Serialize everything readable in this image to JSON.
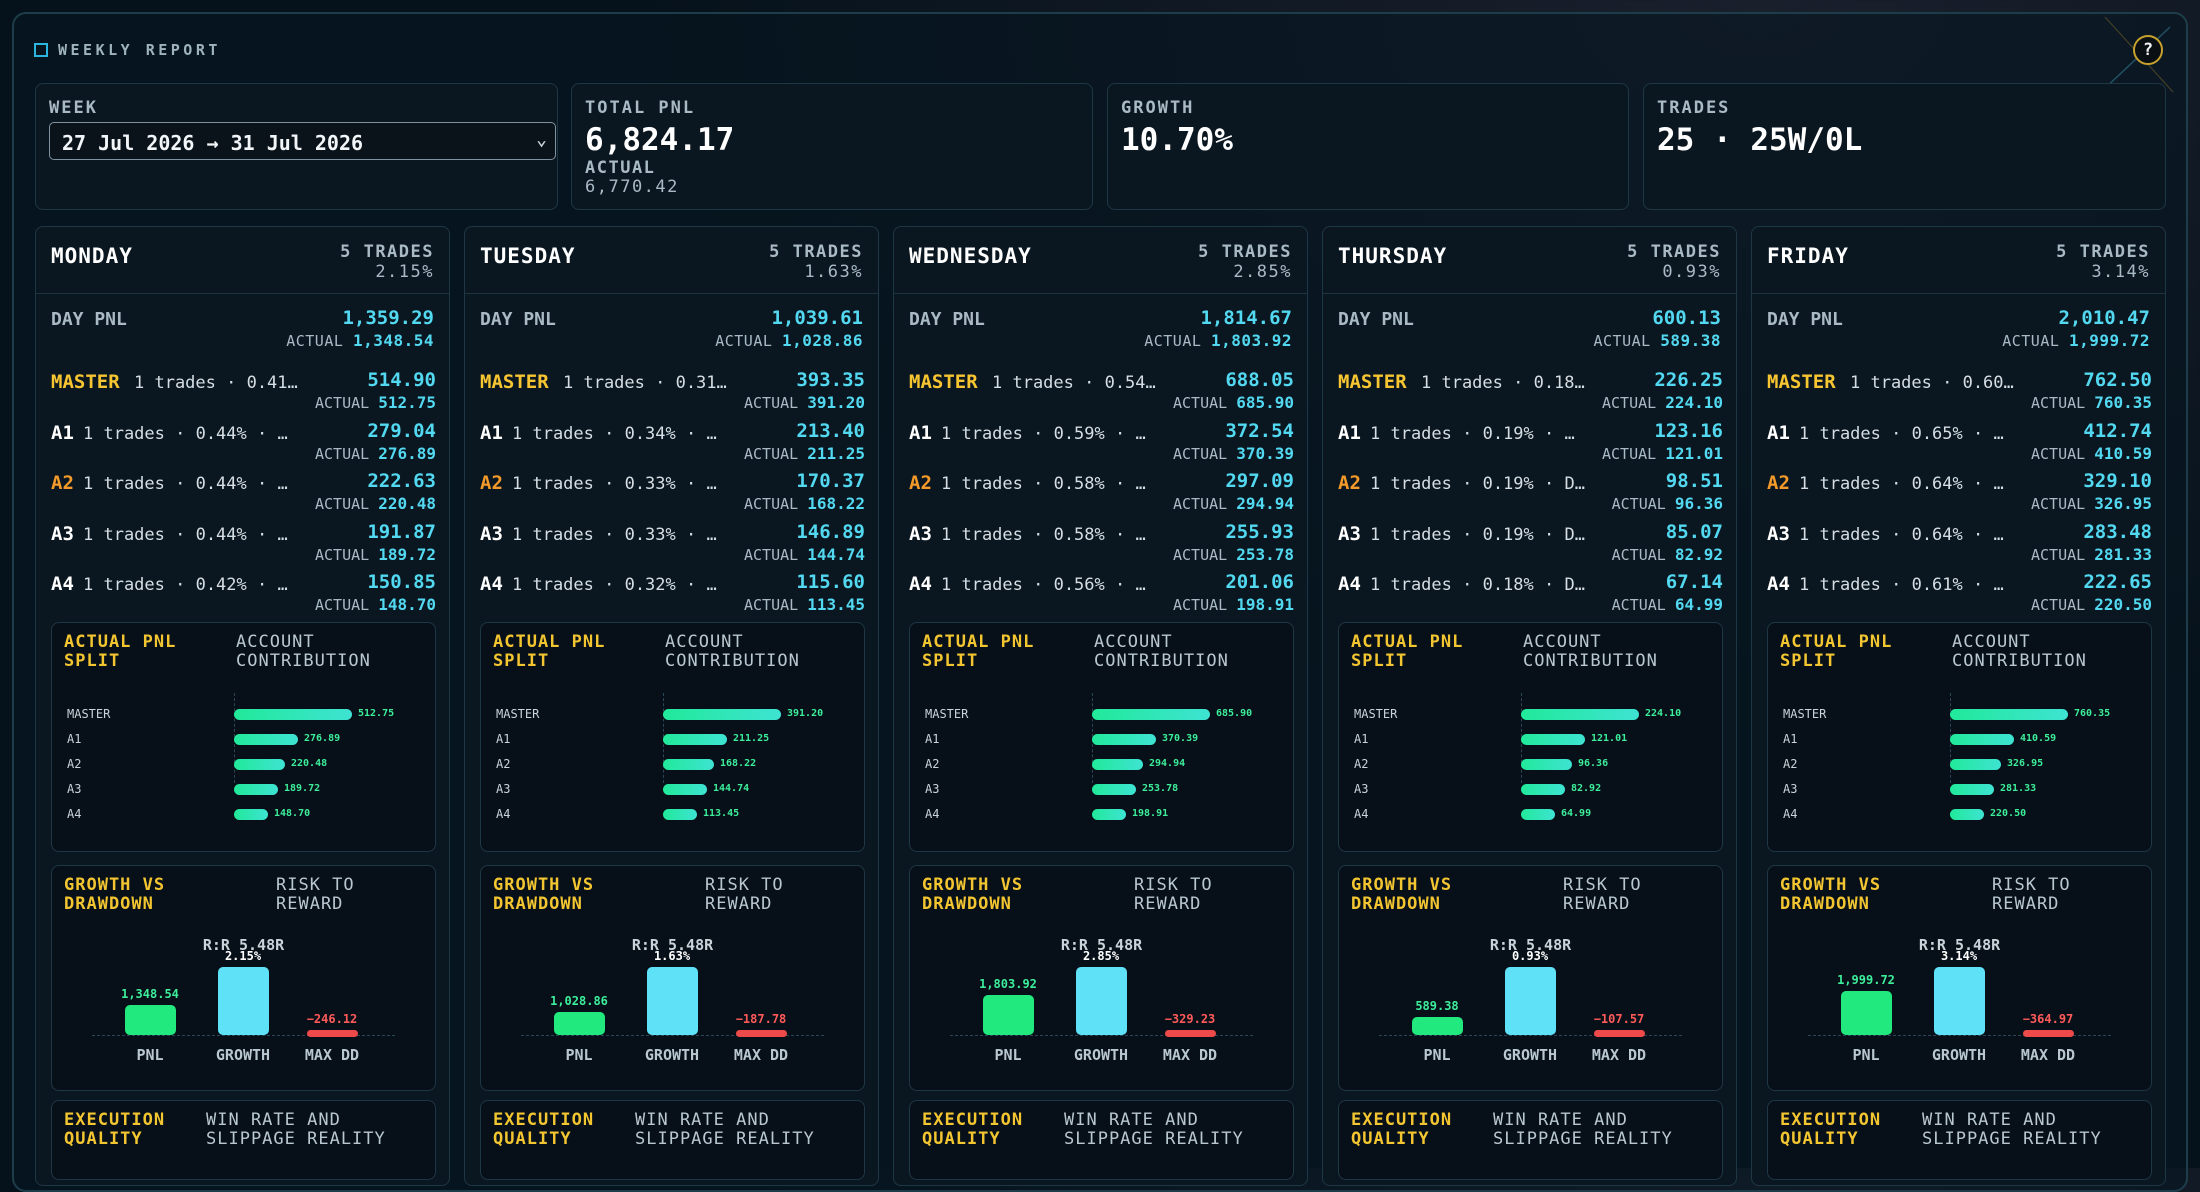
{
  "header": {
    "title": "WEEKLY REPORT",
    "help_label": "?"
  },
  "summary": {
    "week": {
      "label": "WEEK",
      "selected": "27 Jul 2026 → 31 Jul 2026"
    },
    "total_pnl": {
      "label": "TOTAL PNL",
      "value": "6,824.17",
      "actual_label": "ACTUAL",
      "actual_value": "6,770.42"
    },
    "growth": {
      "label": "GROWTH",
      "value": "10.70%"
    },
    "trades": {
      "label": "TRADES",
      "value": "25 · 25W/0L"
    }
  },
  "labels": {
    "day_pnl": "DAY PNL",
    "actual": "ACTUAL",
    "split_title": "ACTUAL PNL\nSPLIT",
    "split_sub": "ACCOUNT\nCONTRIBUTION",
    "gv_title": "GROWTH VS\nDRAWDOWN",
    "gv_sub": "RISK TO\nREWARD",
    "gv_pnl": "PNL",
    "gv_growth": "GROWTH",
    "gv_dd": "MAX DD",
    "exec_title": "EXECUTION\nQUALITY",
    "exec_sub": "WIN RATE AND\nSLIPPAGE REALITY"
  },
  "colors": {
    "master": "#f7c531",
    "a2": "#f39a2a",
    "default_acct": "#ffffff",
    "pnl_bar": "#21e97e",
    "growth_bar": "#5fe2f7",
    "dd_bar": "#ef4a4a"
  },
  "days": [
    {
      "name": "MONDAY",
      "trades": "5 TRADES",
      "pct": "2.15%",
      "day_pnl": "1,359.29",
      "day_actual": "1,348.54",
      "accounts": [
        {
          "name": "MASTER",
          "desc": "1 trades · 0.41…",
          "pnl": "514.90",
          "actual": "512.75"
        },
        {
          "name": "A1",
          "desc": "1 trades · 0.44% · …",
          "pnl": "279.04",
          "actual": "276.89"
        },
        {
          "name": "A2",
          "desc": "1 trades · 0.44% · …",
          "pnl": "222.63",
          "actual": "220.48"
        },
        {
          "name": "A3",
          "desc": "1 trades · 0.44% · …",
          "pnl": "191.87",
          "actual": "189.72"
        },
        {
          "name": "A4",
          "desc": "1 trades · 0.42% · …",
          "pnl": "150.85",
          "actual": "148.70"
        }
      ],
      "split": [
        {
          "name": "MASTER",
          "value": 512.75,
          "label": "512.75"
        },
        {
          "name": "A1",
          "value": 276.89,
          "label": "276.89"
        },
        {
          "name": "A2",
          "value": 220.48,
          "label": "220.48"
        },
        {
          "name": "A3",
          "value": 189.72,
          "label": "189.72"
        },
        {
          "name": "A4",
          "value": 148.7,
          "label": "148.70"
        }
      ],
      "rr": "R:R 5.48R",
      "gv": {
        "pnl": 1348.54,
        "pnl_label": "1,348.54",
        "growth": 2.15,
        "growth_label": "2.15%",
        "dd": -246.12,
        "dd_label": "−246.12"
      }
    },
    {
      "name": "TUESDAY",
      "trades": "5 TRADES",
      "pct": "1.63%",
      "day_pnl": "1,039.61",
      "day_actual": "1,028.86",
      "accounts": [
        {
          "name": "MASTER",
          "desc": "1 trades · 0.31…",
          "pnl": "393.35",
          "actual": "391.20"
        },
        {
          "name": "A1",
          "desc": "1 trades · 0.34% · …",
          "pnl": "213.40",
          "actual": "211.25"
        },
        {
          "name": "A2",
          "desc": "1 trades · 0.33% · …",
          "pnl": "170.37",
          "actual": "168.22"
        },
        {
          "name": "A3",
          "desc": "1 trades · 0.33% · …",
          "pnl": "146.89",
          "actual": "144.74"
        },
        {
          "name": "A4",
          "desc": "1 trades · 0.32% · …",
          "pnl": "115.60",
          "actual": "113.45"
        }
      ],
      "split": [
        {
          "name": "MASTER",
          "value": 391.2,
          "label": "391.20"
        },
        {
          "name": "A1",
          "value": 211.25,
          "label": "211.25"
        },
        {
          "name": "A2",
          "value": 168.22,
          "label": "168.22"
        },
        {
          "name": "A3",
          "value": 144.74,
          "label": "144.74"
        },
        {
          "name": "A4",
          "value": 113.45,
          "label": "113.45"
        }
      ],
      "rr": "R:R 5.48R",
      "gv": {
        "pnl": 1028.86,
        "pnl_label": "1,028.86",
        "growth": 1.63,
        "growth_label": "1.63%",
        "dd": -187.78,
        "dd_label": "−187.78"
      }
    },
    {
      "name": "WEDNESDAY",
      "trades": "5 TRADES",
      "pct": "2.85%",
      "day_pnl": "1,814.67",
      "day_actual": "1,803.92",
      "accounts": [
        {
          "name": "MASTER",
          "desc": "1 trades · 0.54…",
          "pnl": "688.05",
          "actual": "685.90"
        },
        {
          "name": "A1",
          "desc": "1 trades · 0.59% · …",
          "pnl": "372.54",
          "actual": "370.39"
        },
        {
          "name": "A2",
          "desc": "1 trades · 0.58% · …",
          "pnl": "297.09",
          "actual": "294.94"
        },
        {
          "name": "A3",
          "desc": "1 trades · 0.58% · …",
          "pnl": "255.93",
          "actual": "253.78"
        },
        {
          "name": "A4",
          "desc": "1 trades · 0.56% · …",
          "pnl": "201.06",
          "actual": "198.91"
        }
      ],
      "split": [
        {
          "name": "MASTER",
          "value": 685.9,
          "label": "685.90"
        },
        {
          "name": "A1",
          "value": 370.39,
          "label": "370.39"
        },
        {
          "name": "A2",
          "value": 294.94,
          "label": "294.94"
        },
        {
          "name": "A3",
          "value": 253.78,
          "label": "253.78"
        },
        {
          "name": "A4",
          "value": 198.91,
          "label": "198.91"
        }
      ],
      "rr": "R:R 5.48R",
      "gv": {
        "pnl": 1803.92,
        "pnl_label": "1,803.92",
        "growth": 2.85,
        "growth_label": "2.85%",
        "dd": -329.23,
        "dd_label": "−329.23"
      }
    },
    {
      "name": "THURSDAY",
      "trades": "5 TRADES",
      "pct": "0.93%",
      "day_pnl": "600.13",
      "day_actual": "589.38",
      "accounts": [
        {
          "name": "MASTER",
          "desc": "1 trades · 0.18…",
          "pnl": "226.25",
          "actual": "224.10"
        },
        {
          "name": "A1",
          "desc": "1 trades · 0.19% · …",
          "pnl": "123.16",
          "actual": "121.01"
        },
        {
          "name": "A2",
          "desc": "1 trades · 0.19% · D…",
          "pnl": "98.51",
          "actual": "96.36"
        },
        {
          "name": "A3",
          "desc": "1 trades · 0.19% · D…",
          "pnl": "85.07",
          "actual": "82.92"
        },
        {
          "name": "A4",
          "desc": "1 trades · 0.18% · D…",
          "pnl": "67.14",
          "actual": "64.99"
        }
      ],
      "split": [
        {
          "name": "MASTER",
          "value": 224.1,
          "label": "224.10"
        },
        {
          "name": "A1",
          "value": 121.01,
          "label": "121.01"
        },
        {
          "name": "A2",
          "value": 96.36,
          "label": "96.36"
        },
        {
          "name": "A3",
          "value": 82.92,
          "label": "82.92"
        },
        {
          "name": "A4",
          "value": 64.99,
          "label": "64.99"
        }
      ],
      "rr": "R:R 5.48R",
      "gv": {
        "pnl": 589.38,
        "pnl_label": "589.38",
        "growth": 0.93,
        "growth_label": "0.93%",
        "dd": -107.57,
        "dd_label": "−107.57"
      }
    },
    {
      "name": "FRIDAY",
      "trades": "5 TRADES",
      "pct": "3.14%",
      "day_pnl": "2,010.47",
      "day_actual": "1,999.72",
      "accounts": [
        {
          "name": "MASTER",
          "desc": "1 trades · 0.60…",
          "pnl": "762.50",
          "actual": "760.35"
        },
        {
          "name": "A1",
          "desc": "1 trades · 0.65% · …",
          "pnl": "412.74",
          "actual": "410.59"
        },
        {
          "name": "A2",
          "desc": "1 trades · 0.64% · …",
          "pnl": "329.10",
          "actual": "326.95"
        },
        {
          "name": "A3",
          "desc": "1 trades · 0.64% · …",
          "pnl": "283.48",
          "actual": "281.33"
        },
        {
          "name": "A4",
          "desc": "1 trades · 0.61% · …",
          "pnl": "222.65",
          "actual": "220.50"
        }
      ],
      "split": [
        {
          "name": "MASTER",
          "value": 760.35,
          "label": "760.35"
        },
        {
          "name": "A1",
          "value": 410.59,
          "label": "410.59"
        },
        {
          "name": "A2",
          "value": 326.95,
          "label": "326.95"
        },
        {
          "name": "A3",
          "value": 281.33,
          "label": "281.33"
        },
        {
          "name": "A4",
          "value": 220.5,
          "label": "220.50"
        }
      ],
      "rr": "R:R 5.48R",
      "gv": {
        "pnl": 1999.72,
        "pnl_label": "1,999.72",
        "growth": 3.14,
        "growth_label": "3.14%",
        "dd": -364.97,
        "dd_label": "−364.97"
      }
    }
  ]
}
